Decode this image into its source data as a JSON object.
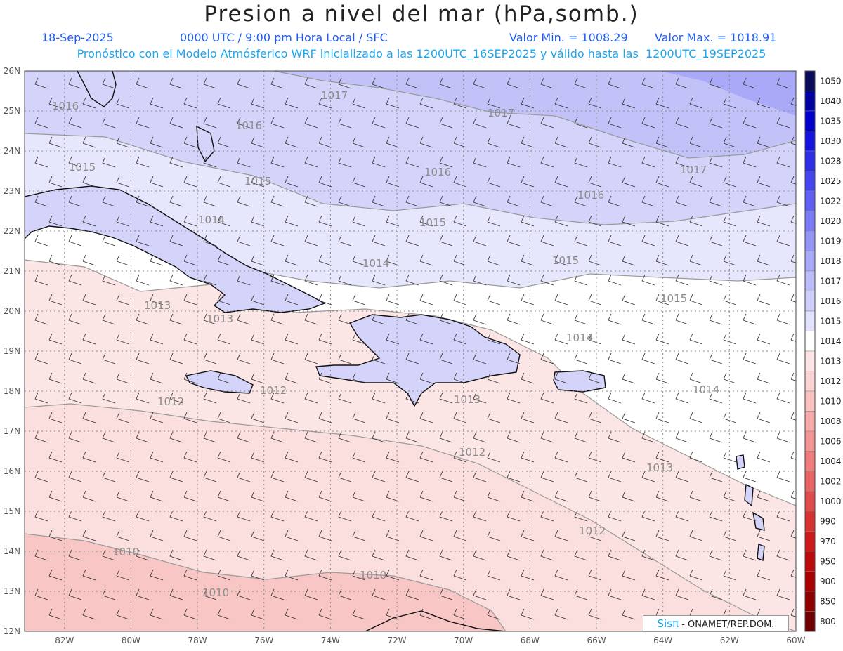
{
  "header": {
    "title": "Presion a nivel del mar (hPa,somb.)",
    "date": "18-Sep-2025",
    "time_line": "0000 UTC / 9:00 pm Hora Local / SFC",
    "min_value": "Valor Min. = 1008.29",
    "max_value": "Valor Max. = 1018.91",
    "model_line": "Pronóstico con el Modelo Atmósferico WRF inicializado a las 1200UTC_16SEP2025 y válido hasta las  1200UTC_19SEP2025"
  },
  "axes": {
    "lat_labels": [
      "26N",
      "25N",
      "24N",
      "23N",
      "22N",
      "21N",
      "20N",
      "19N",
      "18N",
      "17N",
      "16N",
      "15N",
      "14N",
      "13N",
      "12N"
    ],
    "lon_labels": [
      "82W",
      "80W",
      "78W",
      "76W",
      "74W",
      "72W",
      "70W",
      "68W",
      "66W",
      "64W",
      "62W",
      "60W"
    ],
    "lat_range": [
      12,
      26
    ],
    "lon_range": [
      -83.2,
      -60
    ]
  },
  "legend": {
    "levels": [
      "1050",
      "1040",
      "1035",
      "1030",
      "1028",
      "1025",
      "1022",
      "1020",
      "1019",
      "1018",
      "1017",
      "1016",
      "1015",
      "1014",
      "1013",
      "1012",
      "1010",
      "1008",
      "1006",
      "1004",
      "1002",
      "1000",
      "990",
      "970",
      "950",
      "900",
      "850",
      "800"
    ],
    "colors": [
      "#0a0a5a",
      "#0000a0",
      "#0000c8",
      "#1414dc",
      "#2e2ee6",
      "#4646ee",
      "#6060f2",
      "#7b7bf5",
      "#9494f7",
      "#a9a9f9",
      "#bcbcfa",
      "#cfcffb",
      "#e2e2fc",
      "#ffffff",
      "#fde4e4",
      "#fcd4d4",
      "#fbc2c2",
      "#f7aaaa",
      "#f39494",
      "#ee7c7c",
      "#e86464",
      "#e04b4b",
      "#d63232",
      "#cc1a1a",
      "#bb0a0a",
      "#a80000",
      "#8e0000",
      "#700000"
    ]
  },
  "contour_labels": [
    "1017",
    "1016",
    "1015",
    "1014",
    "1013",
    "1012",
    "1010"
  ],
  "credit": {
    "brand": "Sisπ",
    "text": "- ONAMET/REP.DOM."
  }
}
